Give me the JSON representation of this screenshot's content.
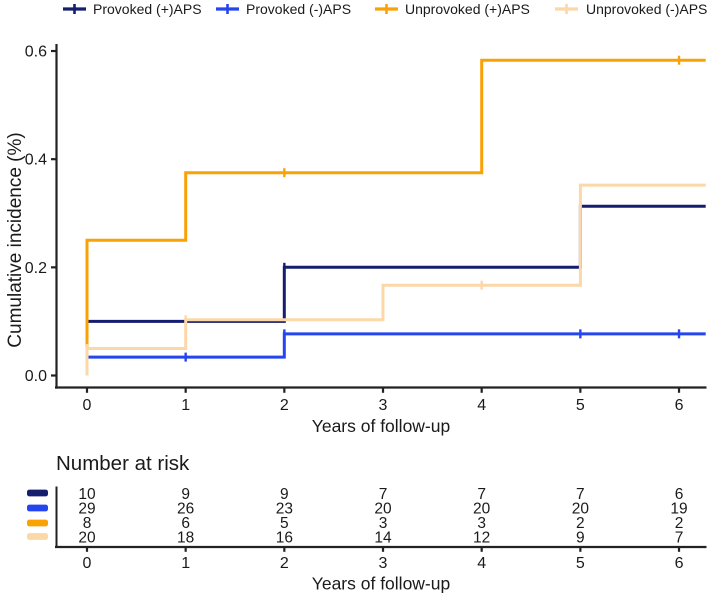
{
  "colors": {
    "navy": "#151d6e",
    "blue": "#2545ef",
    "orange": "#f9a206",
    "peach": "#fcd7a8",
    "axis": "#222222",
    "text": "#1a1a1a"
  },
  "legend": {
    "items": [
      {
        "label": "Provoked (+)APS",
        "color": "#151d6e"
      },
      {
        "label": "Provoked (-)APS",
        "color": "#2545ef"
      },
      {
        "label": "Unprovoked (+)APS",
        "color": "#f9a206"
      },
      {
        "label": "Unprovoked (-)APS",
        "color": "#fcd7a8"
      }
    ]
  },
  "chart_data": {
    "type": "line",
    "subtype": "kaplan-meier-cumulative-incidence-step",
    "title": "",
    "xlabel": "Years of follow-up",
    "ylabel": "Cumulative incidence (%)",
    "xlim": [
      -0.3,
      6.3
    ],
    "ylim": [
      0,
      0.62
    ],
    "grid": false,
    "legend_position": "top",
    "xticks": [
      0,
      1,
      2,
      3,
      4,
      5,
      6
    ],
    "xtick_labels": [
      "0",
      "1",
      "2",
      "3",
      "4",
      "5",
      "6"
    ],
    "ytick_values": [
      0,
      0.2,
      0.4,
      0.6
    ],
    "ytick_labels": [
      "0.0",
      "0.2",
      "0.4",
      "0.6"
    ],
    "series": [
      {
        "name": "Provoked (+)APS",
        "color": "#151d6e",
        "step_points": [
          [
            0,
            0
          ],
          [
            0,
            0.1
          ],
          [
            2,
            0.1
          ],
          [
            2,
            0.2
          ],
          [
            5,
            0.2
          ],
          [
            5,
            0.313
          ],
          [
            6.27,
            0.313
          ]
        ],
        "censor_marks": [
          [
            2,
            0.2
          ]
        ]
      },
      {
        "name": "Provoked (-)APS",
        "color": "#2545ef",
        "step_points": [
          [
            0,
            0
          ],
          [
            0,
            0.034
          ],
          [
            2,
            0.034
          ],
          [
            2,
            0.077
          ],
          [
            6.27,
            0.077
          ]
        ],
        "censor_marks": [
          [
            0,
            0.034
          ],
          [
            1,
            0.034
          ],
          [
            2,
            0.077
          ],
          [
            5,
            0.077
          ],
          [
            6,
            0.077
          ]
        ]
      },
      {
        "name": "Unprovoked (+)APS",
        "color": "#f9a206",
        "step_points": [
          [
            0,
            0
          ],
          [
            0,
            0.25
          ],
          [
            1,
            0.25
          ],
          [
            1,
            0.375
          ],
          [
            4,
            0.375
          ],
          [
            4,
            0.583
          ],
          [
            6.27,
            0.583
          ]
        ],
        "censor_marks": [
          [
            2,
            0.375
          ],
          [
            6,
            0.583
          ]
        ]
      },
      {
        "name": "Unprovoked (-)APS",
        "color": "#fcd7a8",
        "step_points": [
          [
            0,
            0
          ],
          [
            0,
            0.05
          ],
          [
            1,
            0.05
          ],
          [
            1,
            0.103
          ],
          [
            3,
            0.103
          ],
          [
            3,
            0.167
          ],
          [
            5,
            0.167
          ],
          [
            5,
            0.352
          ],
          [
            6.27,
            0.352
          ]
        ],
        "censor_marks": [
          [
            0,
            0.05
          ],
          [
            1,
            0.103
          ],
          [
            4,
            0.167
          ]
        ]
      }
    ]
  },
  "risk_table": {
    "title": "Number at risk",
    "xlabel": "Years of follow-up",
    "timepoints": [
      "0",
      "1",
      "2",
      "3",
      "4",
      "5",
      "6"
    ],
    "rows": [
      {
        "name": "Provoked (+)APS",
        "color": "#151d6e",
        "values": [
          "10",
          "9",
          "9",
          "7",
          "7",
          "7",
          "6"
        ]
      },
      {
        "name": "Provoked (-)APS",
        "color": "#2545ef",
        "values": [
          "29",
          "26",
          "23",
          "20",
          "20",
          "20",
          "19"
        ]
      },
      {
        "name": "Unprovoked (+)APS",
        "color": "#f9a206",
        "values": [
          "8",
          "6",
          "5",
          "3",
          "3",
          "2",
          "2"
        ]
      },
      {
        "name": "Unprovoked (-)APS",
        "color": "#fcd7a8",
        "values": [
          "20",
          "18",
          "16",
          "14",
          "12",
          "9",
          "7"
        ]
      }
    ]
  }
}
